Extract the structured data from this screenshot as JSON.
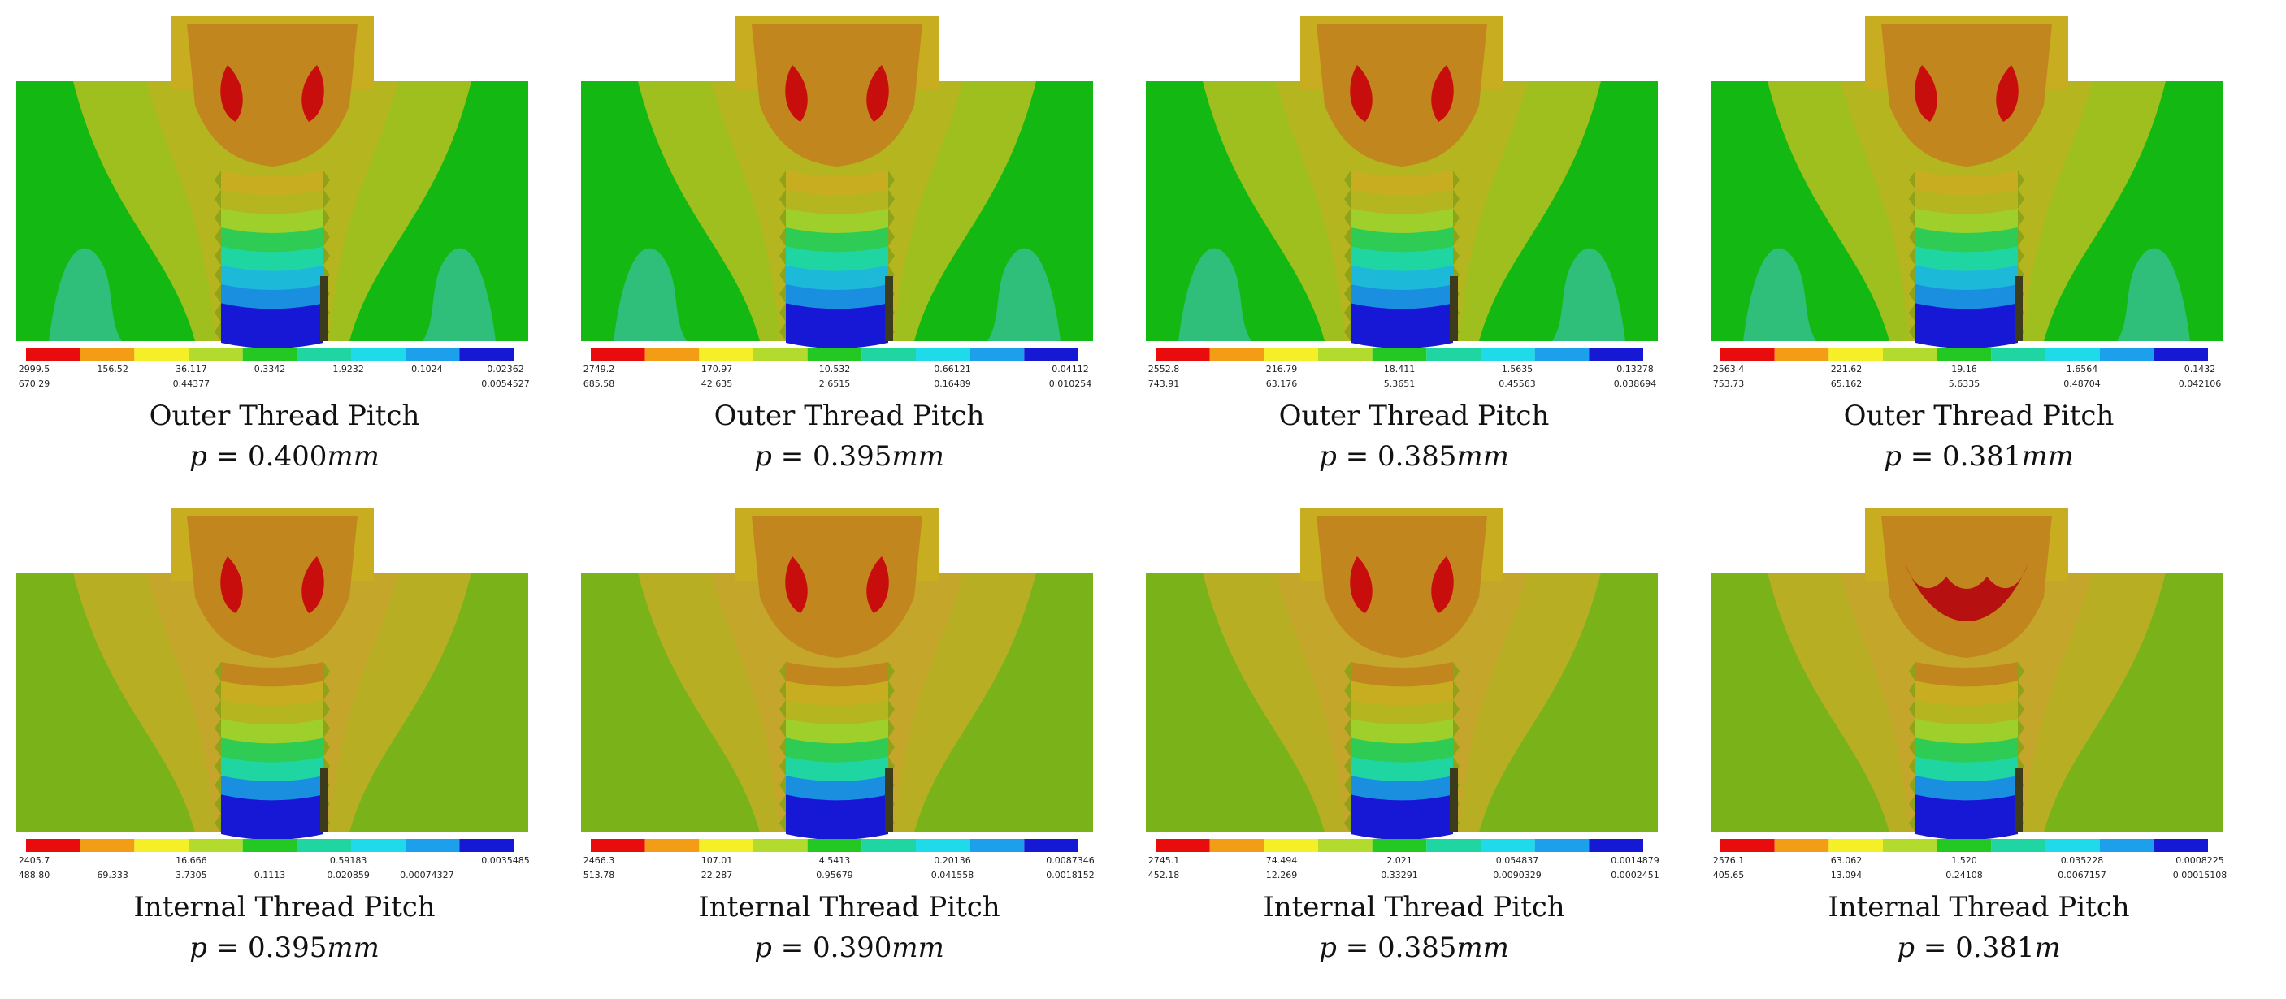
{
  "colors": {
    "red": "#d50b0b",
    "orange": "#ef9a10",
    "yellow": "#f3f023",
    "yellowgreen": "#a8d92a",
    "green": "#14c514",
    "teal": "#18d9a7",
    "cyan": "#18dbe8",
    "lightblue": "#19a3ec",
    "blue": "#1618d5",
    "bg_green": "#13b813",
    "bg_olive": "#7ab21a",
    "brown": "#c1861e",
    "gold": "#c8ad20",
    "khaki": "#a7ad1c",
    "darkred": "#b61010"
  },
  "legend_colors": [
    "#e80c0c",
    "#f39c16",
    "#f5ef27",
    "#b3db2d",
    "#23c823",
    "#1fd6a3",
    "#1fdbe9",
    "#1ca0ec",
    "#1519d4"
  ],
  "panels": [
    {
      "id": "outer-0400",
      "row": 0,
      "col": 0,
      "bg": "#13b813",
      "legend_top": [
        "2999.5",
        "156.52",
        "36.117",
        "0.3342",
        "1.9232",
        "0.1024",
        "0.02362"
      ],
      "legend_bottom": [
        "670.29",
        "",
        "0.44377",
        "",
        "",
        "",
        "0.0054527"
      ],
      "title": "Outer Thread Pitch",
      "pitch_symbol": "p",
      "pitch_value": "0.400",
      "pitch_unit": "mm"
    },
    {
      "id": "outer-0395",
      "row": 0,
      "col": 1,
      "bg": "#13b813",
      "legend_top": [
        "2749.2",
        "170.97",
        "10.532",
        "0.66121",
        "0.04112"
      ],
      "legend_bottom": [
        "685.58",
        "42.635",
        "2.6515",
        "0.16489",
        "0.010254"
      ],
      "title": "Outer Thread Pitch",
      "pitch_symbol": "p",
      "pitch_value": "0.395",
      "pitch_unit": "mm"
    },
    {
      "id": "outer-0385",
      "row": 0,
      "col": 2,
      "bg": "#13b813",
      "legend_top": [
        "2552.8",
        "216.79",
        "18.411",
        "1.5635",
        "0.13278"
      ],
      "legend_bottom": [
        "743.91",
        "63.176",
        "5.3651",
        "0.45563",
        "0.038694"
      ],
      "title": "Outer Thread Pitch",
      "pitch_symbol": "p",
      "pitch_value": "0.385",
      "pitch_unit": "mm"
    },
    {
      "id": "outer-0381",
      "row": 0,
      "col": 3,
      "bg": "#13b813",
      "legend_top": [
        "2563.4",
        "221.62",
        "19.16",
        "1.6564",
        "0.1432"
      ],
      "legend_bottom": [
        "753.73",
        "65.162",
        "5.6335",
        "0.48704",
        "0.042106"
      ],
      "title": "Outer Thread Pitch",
      "pitch_symbol": "p",
      "pitch_value": "0.381",
      "pitch_unit": "mm"
    },
    {
      "id": "internal-0395",
      "row": 1,
      "col": 0,
      "bg": "#7ab21a",
      "legend_top": [
        "2405.7",
        "",
        "16.666",
        "",
        "0.59183",
        "",
        "0.0035485"
      ],
      "legend_bottom": [
        "488.80",
        "69.333",
        "3.7305",
        "0.1113",
        "0.020859",
        "0.00074327",
        ""
      ],
      "title": "Internal Thread Pitch",
      "pitch_symbol": "p",
      "pitch_value": "0.395",
      "pitch_unit": "mm"
    },
    {
      "id": "internal-0390",
      "row": 1,
      "col": 1,
      "bg": "#7ab21a",
      "legend_top": [
        "2466.3",
        "107.01",
        "4.5413",
        "0.20136",
        "0.0087346"
      ],
      "legend_bottom": [
        "513.78",
        "22.287",
        "0.95679",
        "0.041558",
        "0.0018152"
      ],
      "title": "Internal Thread Pitch",
      "pitch_symbol": "p",
      "pitch_value": "0.390",
      "pitch_unit": "mm"
    },
    {
      "id": "internal-0385",
      "row": 1,
      "col": 2,
      "bg": "#7ab21a",
      "legend_top": [
        "2745.1",
        "74.494",
        "2.021",
        "0.054837",
        "0.0014879"
      ],
      "legend_bottom": [
        "452.18",
        "12.269",
        "0.33291",
        "0.0090329",
        "0.0002451"
      ],
      "title": "Internal Thread Pitch",
      "pitch_symbol": "p",
      "pitch_value": "0.385",
      "pitch_unit": "mm"
    },
    {
      "id": "internal-0381",
      "row": 1,
      "col": 3,
      "bg": "#7ab21a",
      "legend_top": [
        "2576.1",
        "63.062",
        "1.520",
        "0.035228",
        "0.0008225"
      ],
      "legend_bottom": [
        "405.65",
        "13.094",
        "0.24108",
        "0.0067157",
        "0.00015108"
      ],
      "title": "Internal Thread Pitch",
      "pitch_symbol": "p",
      "pitch_value": "0.381",
      "pitch_unit": "m"
    }
  ]
}
